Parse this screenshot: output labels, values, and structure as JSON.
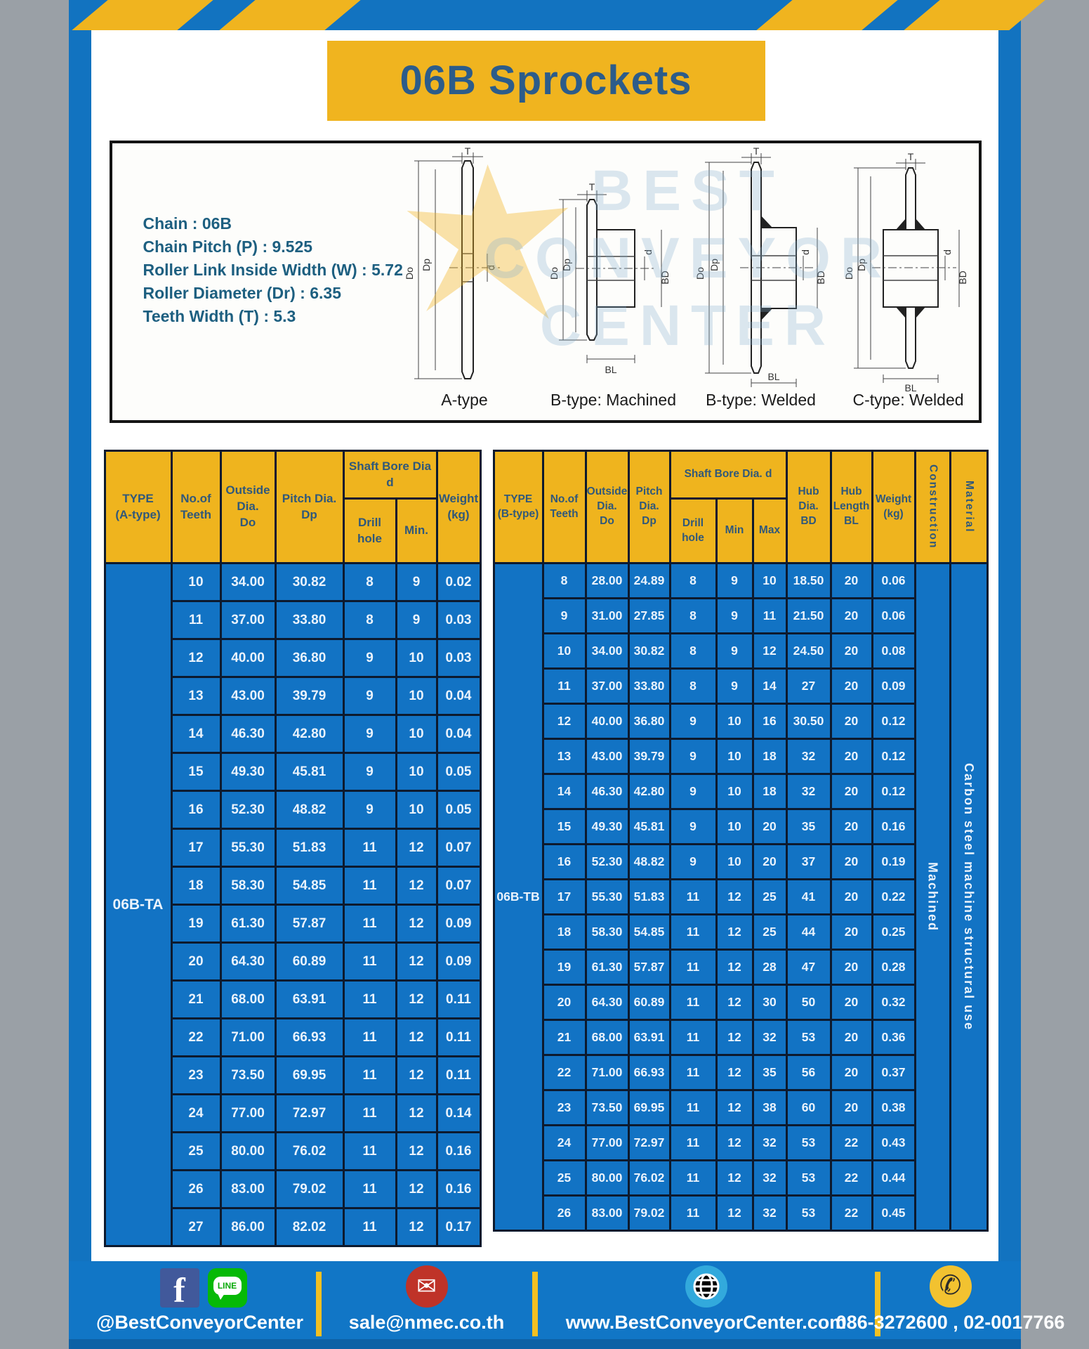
{
  "title": "06B Sprockets",
  "specs": {
    "lines": [
      "Chain  : 06B",
      "Chain Pitch (P)  :  9.525",
      "Roller Link Inside Width (W)  :  5.72",
      "Roller Diameter (Dr)  : 6.35",
      "Teeth Width (T)  :  5.3"
    ]
  },
  "diagram": {
    "watermark_lines": [
      "BEST",
      "CONVEYOR",
      "CENTER"
    ],
    "captions": [
      "A-type",
      "B-type: Machined",
      "B-type: Welded",
      "C-type: Welded"
    ],
    "dim_labels": [
      "T",
      "Do",
      "Dp",
      "d",
      "BD",
      "BL"
    ]
  },
  "table_a": {
    "headers": {
      "type": "TYPE\n(A-type)",
      "teeth": "No.of\nTeeth",
      "outside": "Outside\nDia.\nDo",
      "pitch": "Pitch Dia.\nDp",
      "shaft_bore": "Shaft Bore Dia d",
      "drill": "Drill hole",
      "min": "Min.",
      "weight": "Weight\n(kg)"
    },
    "type_label": "06B-TA",
    "rows": [
      [
        "10",
        "34.00",
        "30.82",
        "8",
        "9",
        "0.02"
      ],
      [
        "11",
        "37.00",
        "33.80",
        "8",
        "9",
        "0.03"
      ],
      [
        "12",
        "40.00",
        "36.80",
        "9",
        "10",
        "0.03"
      ],
      [
        "13",
        "43.00",
        "39.79",
        "9",
        "10",
        "0.04"
      ],
      [
        "14",
        "46.30",
        "42.80",
        "9",
        "10",
        "0.04"
      ],
      [
        "15",
        "49.30",
        "45.81",
        "9",
        "10",
        "0.05"
      ],
      [
        "16",
        "52.30",
        "48.82",
        "9",
        "10",
        "0.05"
      ],
      [
        "17",
        "55.30",
        "51.83",
        "11",
        "12",
        "0.07"
      ],
      [
        "18",
        "58.30",
        "54.85",
        "11",
        "12",
        "0.07"
      ],
      [
        "19",
        "61.30",
        "57.87",
        "11",
        "12",
        "0.09"
      ],
      [
        "20",
        "64.30",
        "60.89",
        "11",
        "12",
        "0.09"
      ],
      [
        "21",
        "68.00",
        "63.91",
        "11",
        "12",
        "0.11"
      ],
      [
        "22",
        "71.00",
        "66.93",
        "11",
        "12",
        "0.11"
      ],
      [
        "23",
        "73.50",
        "69.95",
        "11",
        "12",
        "0.11"
      ],
      [
        "24",
        "77.00",
        "72.97",
        "11",
        "12",
        "0.14"
      ],
      [
        "25",
        "80.00",
        "76.02",
        "11",
        "12",
        "0.16"
      ],
      [
        "26",
        "83.00",
        "79.02",
        "11",
        "12",
        "0.16"
      ],
      [
        "27",
        "86.00",
        "82.02",
        "11",
        "12",
        "0.17"
      ]
    ]
  },
  "table_b": {
    "headers": {
      "type": "TYPE\n(B-type)",
      "teeth": "No.of\nTeeth",
      "outside": "Outside\nDia.\nDo",
      "pitch": "Pitch\nDia.\nDp",
      "shaft_bore": "Shaft Bore Dia. d",
      "drill": "Drill hole",
      "min": "Min",
      "max": "Max",
      "hub_dia": "Hub\nDia.\nBD",
      "hub_len": "Hub\nLength\nBL",
      "weight": "Weight\n(kg)",
      "construction": "Construction",
      "material": "Material"
    },
    "type_label": "06B-TB",
    "construction": "Machined",
    "material": "Carbon  steel  machine  structural  use",
    "rows": [
      [
        "8",
        "28.00",
        "24.89",
        "8",
        "9",
        "10",
        "18.50",
        "20",
        "0.06"
      ],
      [
        "9",
        "31.00",
        "27.85",
        "8",
        "9",
        "11",
        "21.50",
        "20",
        "0.06"
      ],
      [
        "10",
        "34.00",
        "30.82",
        "8",
        "9",
        "12",
        "24.50",
        "20",
        "0.08"
      ],
      [
        "11",
        "37.00",
        "33.80",
        "8",
        "9",
        "14",
        "27",
        "20",
        "0.09"
      ],
      [
        "12",
        "40.00",
        "36.80",
        "9",
        "10",
        "16",
        "30.50",
        "20",
        "0.12"
      ],
      [
        "13",
        "43.00",
        "39.79",
        "9",
        "10",
        "18",
        "32",
        "20",
        "0.12"
      ],
      [
        "14",
        "46.30",
        "42.80",
        "9",
        "10",
        "18",
        "32",
        "20",
        "0.12"
      ],
      [
        "15",
        "49.30",
        "45.81",
        "9",
        "10",
        "20",
        "35",
        "20",
        "0.16"
      ],
      [
        "16",
        "52.30",
        "48.82",
        "9",
        "10",
        "20",
        "37",
        "20",
        "0.19"
      ],
      [
        "17",
        "55.30",
        "51.83",
        "11",
        "12",
        "25",
        "41",
        "20",
        "0.22"
      ],
      [
        "18",
        "58.30",
        "54.85",
        "11",
        "12",
        "25",
        "44",
        "20",
        "0.25"
      ],
      [
        "19",
        "61.30",
        "57.87",
        "11",
        "12",
        "28",
        "47",
        "20",
        "0.28"
      ],
      [
        "20",
        "64.30",
        "60.89",
        "11",
        "12",
        "30",
        "50",
        "20",
        "0.32"
      ],
      [
        "21",
        "68.00",
        "63.91",
        "11",
        "12",
        "32",
        "53",
        "20",
        "0.36"
      ],
      [
        "22",
        "71.00",
        "66.93",
        "11",
        "12",
        "35",
        "56",
        "20",
        "0.37"
      ],
      [
        "23",
        "73.50",
        "69.95",
        "11",
        "12",
        "38",
        "60",
        "20",
        "0.38"
      ],
      [
        "24",
        "77.00",
        "72.97",
        "11",
        "12",
        "32",
        "53",
        "22",
        "0.43"
      ],
      [
        "25",
        "80.00",
        "76.02",
        "11",
        "12",
        "32",
        "53",
        "22",
        "0.44"
      ],
      [
        "26",
        "83.00",
        "79.02",
        "11",
        "12",
        "32",
        "53",
        "22",
        "0.45"
      ]
    ]
  },
  "footer": {
    "line_badge": "LINE",
    "social": "@BestConveyorCenter",
    "email": "sale@nmec.co.th",
    "website": "www.BestConveyorCenter.com",
    "phone": "086-3272600 , 02-0017766"
  },
  "colors": {
    "frame_blue": "#1273c0",
    "accent_yellow": "#f0b41f",
    "cell_blue": "#1273c4",
    "header_text": "#30587a",
    "title_text": "#2c5c8a"
  }
}
